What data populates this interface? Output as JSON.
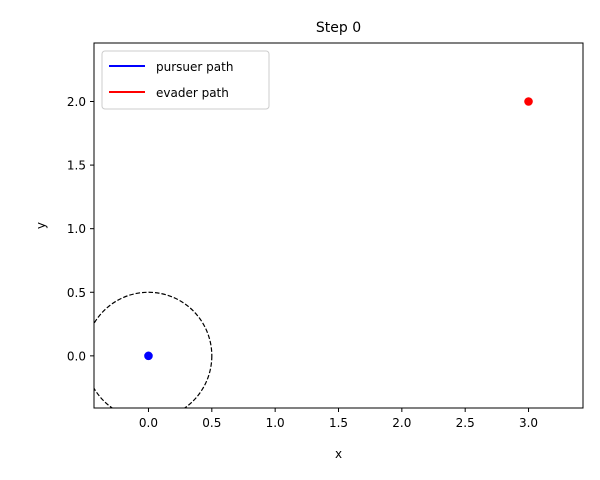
{
  "chart_data": {
    "type": "scatter",
    "title": "Step 0",
    "xlabel": "x",
    "ylabel": "y",
    "xlim": [
      -0.43,
      3.43
    ],
    "ylim": [
      -0.41,
      2.46
    ],
    "xticks": [
      0.0,
      0.5,
      1.0,
      1.5,
      2.0,
      2.5,
      3.0
    ],
    "yticks": [
      0.0,
      0.5,
      1.0,
      1.5,
      2.0
    ],
    "xtick_labels": [
      "0.0",
      "0.5",
      "1.0",
      "1.5",
      "2.0",
      "2.5",
      "3.0"
    ],
    "ytick_labels": [
      "0.0",
      "0.5",
      "1.0",
      "1.5",
      "2.0"
    ],
    "grid": false,
    "legend_position": "top-left",
    "series": [
      {
        "name": "pursuer path",
        "color": "#0000ff",
        "x": [
          0.0
        ],
        "y": [
          0.0
        ]
      },
      {
        "name": "evader path",
        "color": "#ff0000",
        "x": [
          3.0
        ],
        "y": [
          2.0
        ]
      }
    ],
    "circle": {
      "center": [
        0.0,
        0.0
      ],
      "radius": 0.5,
      "style": "dashed",
      "color": "#000000"
    }
  }
}
